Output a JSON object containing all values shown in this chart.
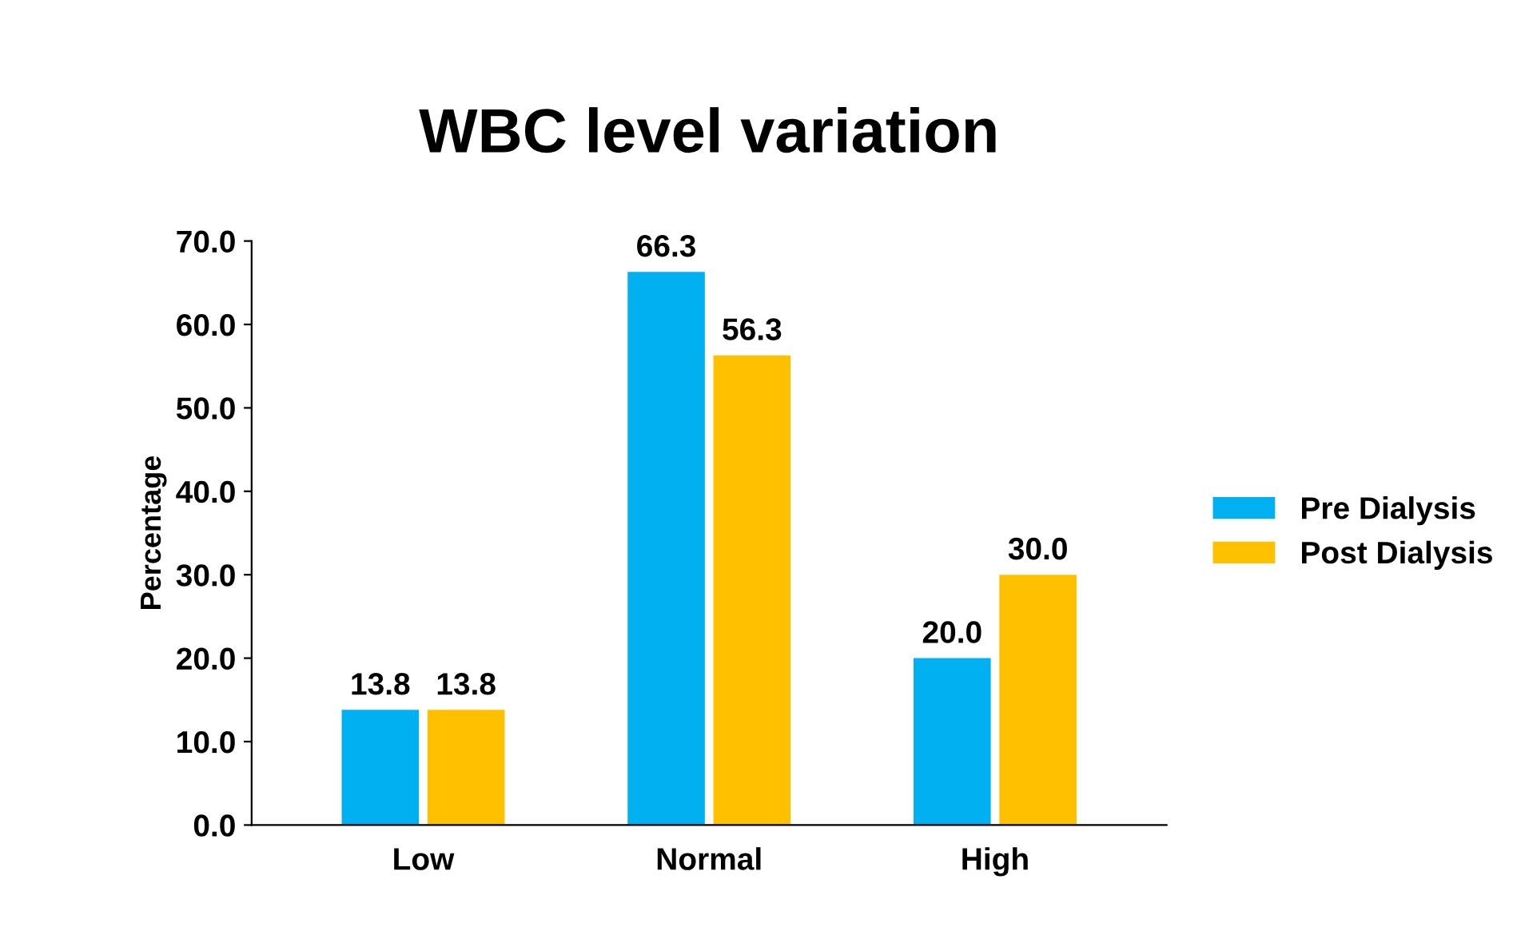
{
  "chart_data": {
    "type": "bar",
    "title": "WBC level variation",
    "ylabel": "Percentage",
    "categories": [
      "Low",
      "Normal",
      "High"
    ],
    "series": [
      {
        "name": "Pre Dialysis",
        "color": "#00b0f0",
        "values": [
          13.8,
          66.3,
          20.0
        ],
        "value_labels": [
          "13.8",
          "66.3",
          "20.0"
        ]
      },
      {
        "name": "Post Dialysis",
        "color": "#ffc000",
        "values": [
          13.8,
          56.3,
          30.0
        ],
        "value_labels": [
          "13.8",
          "56.3",
          "30.0"
        ]
      }
    ],
    "ylim": [
      0,
      70
    ],
    "yticks": [
      {
        "value": 0,
        "label": "0.0"
      },
      {
        "value": 10,
        "label": "10.0"
      },
      {
        "value": 20,
        "label": "20.0"
      },
      {
        "value": 30,
        "label": "30.0"
      },
      {
        "value": 40,
        "label": "40.0"
      },
      {
        "value": 50,
        "label": "50.0"
      },
      {
        "value": 60,
        "label": "60.0"
      },
      {
        "value": 70,
        "label": "70.0"
      }
    ],
    "grid": false,
    "legend": "right"
  }
}
